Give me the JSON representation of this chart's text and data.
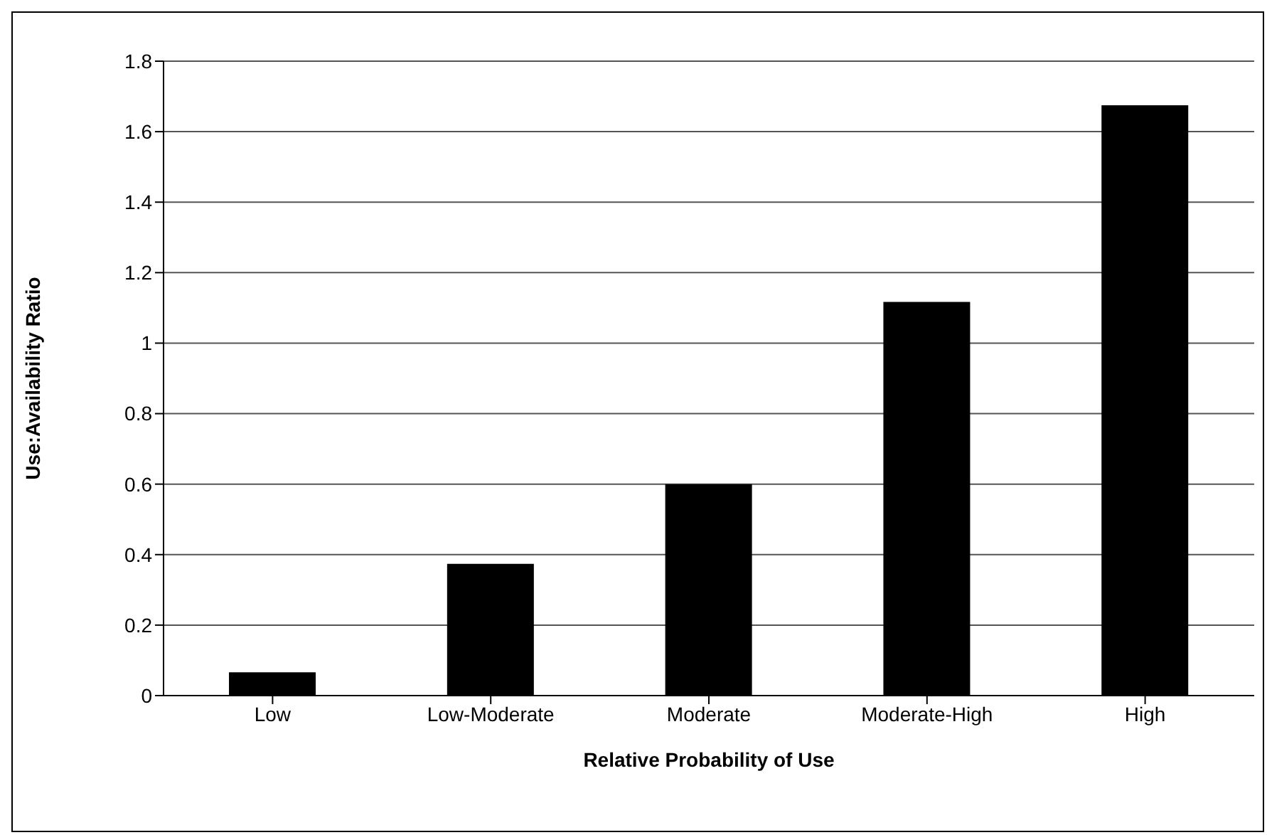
{
  "chart_data": {
    "type": "bar",
    "xlabel": "Relative Probability of Use",
    "ylabel": "Use:Availability Ratio",
    "categories": [
      "Low",
      "Low-Moderate",
      "Moderate",
      "Moderate-High",
      "High"
    ],
    "values": [
      0.066,
      0.374,
      0.6,
      1.117,
      1.675
    ],
    "color": "#000000",
    "ylim": [
      0,
      1.8
    ],
    "yticks": [
      0,
      0.2,
      0.4,
      0.6,
      0.8,
      1,
      1.2,
      1.4,
      1.6,
      1.8
    ],
    "grid": "y"
  }
}
